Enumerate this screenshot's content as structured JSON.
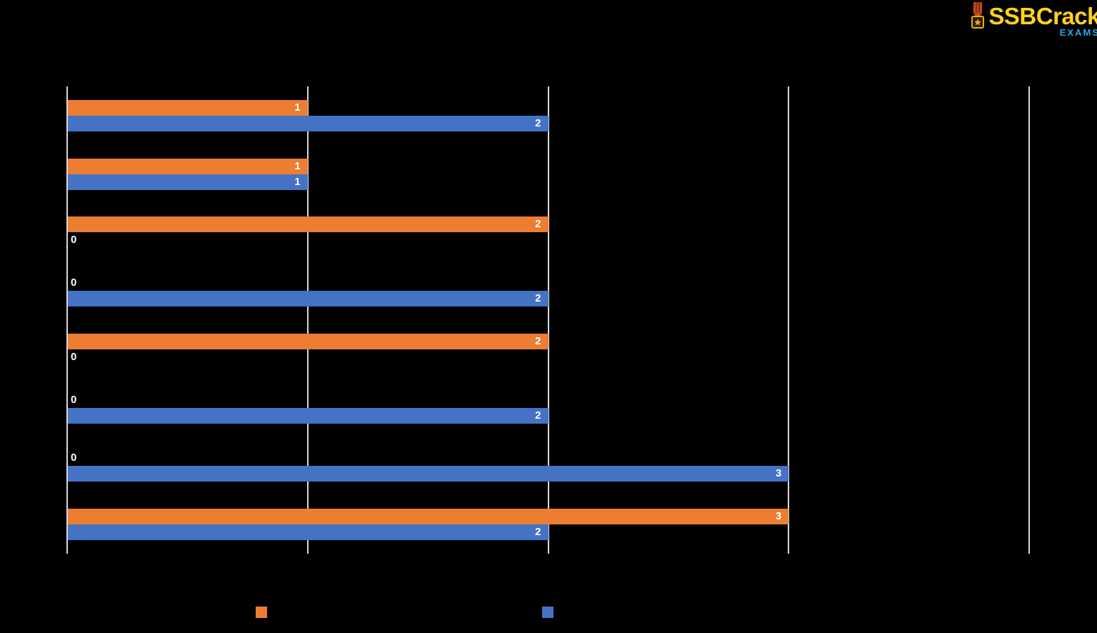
{
  "canvas": {
    "background": "#000000"
  },
  "logo": {
    "text": "SSBCrack",
    "subtext": "EXAMS",
    "text_color": "#FFD21E",
    "subtext_color": "#2BA8E0",
    "medal_ribbon_color": "#C9451C",
    "medal_ribbon_stripe_color": "#8F2A10",
    "medal_frame_color": "#E8B007",
    "medal_star_color": "#F0A830"
  },
  "chart_data": {
    "type": "bar",
    "orientation": "horizontal",
    "title": "",
    "xlabel": "",
    "ylabel": "",
    "x_axis": {
      "min": 0,
      "max": 4,
      "gridline_interval": 1,
      "gridline_color": "#D9D9D9",
      "tick_labels_visible": false
    },
    "groups": 8,
    "categories": [
      "",
      "",
      "",
      "",
      "",
      "",
      "",
      ""
    ],
    "category_labels_visible": false,
    "series": [
      {
        "label": "",
        "color": "#ED7D31",
        "values": [
          1,
          1,
          2,
          0,
          2,
          0,
          0,
          3
        ]
      },
      {
        "label": "",
        "color": "#4472C4",
        "values": [
          2,
          1,
          0,
          2,
          0,
          2,
          3,
          2
        ]
      }
    ],
    "data_labels": {
      "color": "#FFFFFF",
      "position": "inside-end",
      "zero_position": "outside-axis"
    },
    "legend": {
      "position": "bottom",
      "labels_visible": false,
      "swatch_colors": [
        "#ED7D31",
        "#4472C4"
      ]
    }
  }
}
